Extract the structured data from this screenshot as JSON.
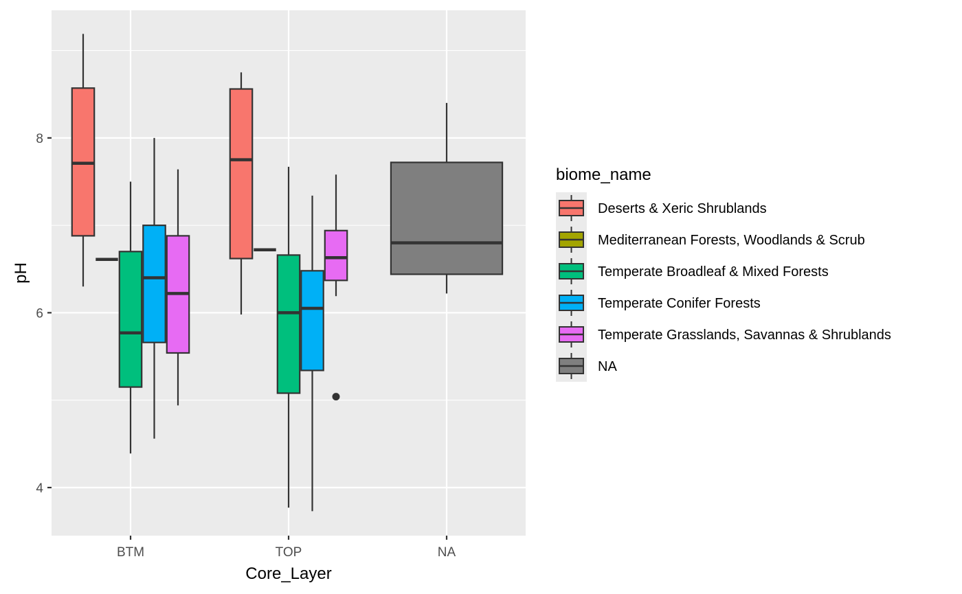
{
  "chart_data": {
    "type": "boxplot",
    "title": "",
    "xlabel": "Core_Layer",
    "ylabel": "pH",
    "categories": [
      "BTM",
      "TOP",
      "NA"
    ],
    "ylim": [
      3.45,
      9.46
    ],
    "yticks": [
      4,
      6,
      8
    ],
    "ytick_labels": [
      "4",
      "6",
      "8"
    ],
    "grid": true,
    "legend": {
      "title": "biome_name",
      "position": "right",
      "entries": [
        {
          "label": "Deserts & Xeric Shrublands",
          "color": "#F8766D"
        },
        {
          "label": "Mediterranean Forests, Woodlands & Scrub",
          "color": "#A3A500"
        },
        {
          "label": "Temperate Broadleaf & Mixed Forests",
          "color": "#00BF7D"
        },
        {
          "label": "Temperate Conifer Forests",
          "color": "#00B0F6"
        },
        {
          "label": "Temperate Grasslands, Savannas & Shrublands",
          "color": "#E76BF3"
        },
        {
          "label": "NA",
          "color": "#7F7F7F"
        }
      ]
    },
    "series": [
      {
        "category": "BTM",
        "group": "Deserts & Xeric Shrublands",
        "slot": 0,
        "nslots": 5,
        "min": 6.3,
        "q1": 6.88,
        "median": 7.71,
        "q3": 8.57,
        "max": 9.19,
        "outliers": []
      },
      {
        "category": "BTM",
        "group": "Mediterranean Forests, Woodlands & Scrub",
        "slot": 1,
        "nslots": 5,
        "min": 6.61,
        "q1": 6.61,
        "median": 6.61,
        "q3": 6.61,
        "max": 6.61,
        "outliers": []
      },
      {
        "category": "BTM",
        "group": "Temperate Broadleaf & Mixed Forests",
        "slot": 2,
        "nslots": 5,
        "min": 4.39,
        "q1": 5.15,
        "median": 5.77,
        "q3": 6.7,
        "max": 7.5,
        "outliers": []
      },
      {
        "category": "BTM",
        "group": "Temperate Conifer Forests",
        "slot": 3,
        "nslots": 5,
        "min": 4.56,
        "q1": 5.66,
        "median": 6.4,
        "q3": 7.0,
        "max": 8.0,
        "outliers": []
      },
      {
        "category": "BTM",
        "group": "Temperate Grasslands, Savannas & Shrublands",
        "slot": 4,
        "nslots": 5,
        "min": 4.94,
        "q1": 5.54,
        "median": 6.22,
        "q3": 6.88,
        "max": 7.64,
        "outliers": []
      },
      {
        "category": "TOP",
        "group": "Deserts & Xeric Shrublands",
        "slot": 0,
        "nslots": 5,
        "min": 5.98,
        "q1": 6.62,
        "median": 7.75,
        "q3": 8.56,
        "max": 8.75,
        "outliers": []
      },
      {
        "category": "TOP",
        "group": "Mediterranean Forests, Woodlands & Scrub",
        "slot": 1,
        "nslots": 5,
        "min": 6.72,
        "q1": 6.72,
        "median": 6.72,
        "q3": 6.72,
        "max": 6.72,
        "outliers": []
      },
      {
        "category": "TOP",
        "group": "Temperate Broadleaf & Mixed Forests",
        "slot": 2,
        "nslots": 5,
        "min": 3.77,
        "q1": 5.08,
        "median": 6.0,
        "q3": 6.66,
        "max": 7.67,
        "outliers": []
      },
      {
        "category": "TOP",
        "group": "Temperate Conifer Forests",
        "slot": 3,
        "nslots": 5,
        "min": 3.73,
        "q1": 5.34,
        "median": 6.05,
        "q3": 6.48,
        "max": 7.34,
        "outliers": []
      },
      {
        "category": "TOP",
        "group": "Temperate Grasslands, Savannas & Shrublands",
        "slot": 4,
        "nslots": 5,
        "min": 6.19,
        "q1": 6.37,
        "median": 6.63,
        "q3": 6.94,
        "max": 7.58,
        "outliers": [
          5.04
        ]
      },
      {
        "category": "NA",
        "group": "NA",
        "slot": 0,
        "nslots": 1,
        "min": 6.22,
        "q1": 6.44,
        "median": 6.8,
        "q3": 7.72,
        "max": 8.4,
        "outliers": []
      }
    ]
  }
}
